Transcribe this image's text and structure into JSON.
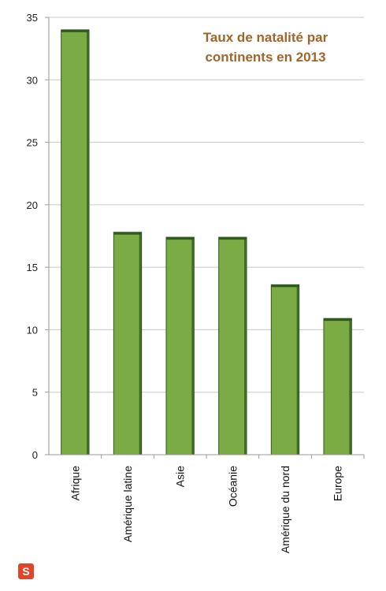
{
  "chart_data": {
    "type": "bar",
    "title_lines": [
      "Taux de natalité par",
      "continents en 2013"
    ],
    "categories": [
      "Afrique",
      "Amérique latine",
      "Asie",
      "Océanie",
      "Amérique du nord",
      "Europe"
    ],
    "values": [
      34,
      17.8,
      17.4,
      17.4,
      13.6,
      10.9
    ],
    "ylim": [
      0,
      35
    ],
    "yticks": [
      0,
      5,
      10,
      15,
      20,
      25,
      30,
      35
    ],
    "grid": true,
    "legend": "none",
    "colors": {
      "bar": "#7aab45",
      "bar_edge": "#2f5a1c",
      "title": "#a0652a",
      "grid": "#c8c8c8",
      "axis": "#9a9a9a"
    }
  },
  "logo": {
    "glyph": "S",
    "color": "#e0452a"
  }
}
